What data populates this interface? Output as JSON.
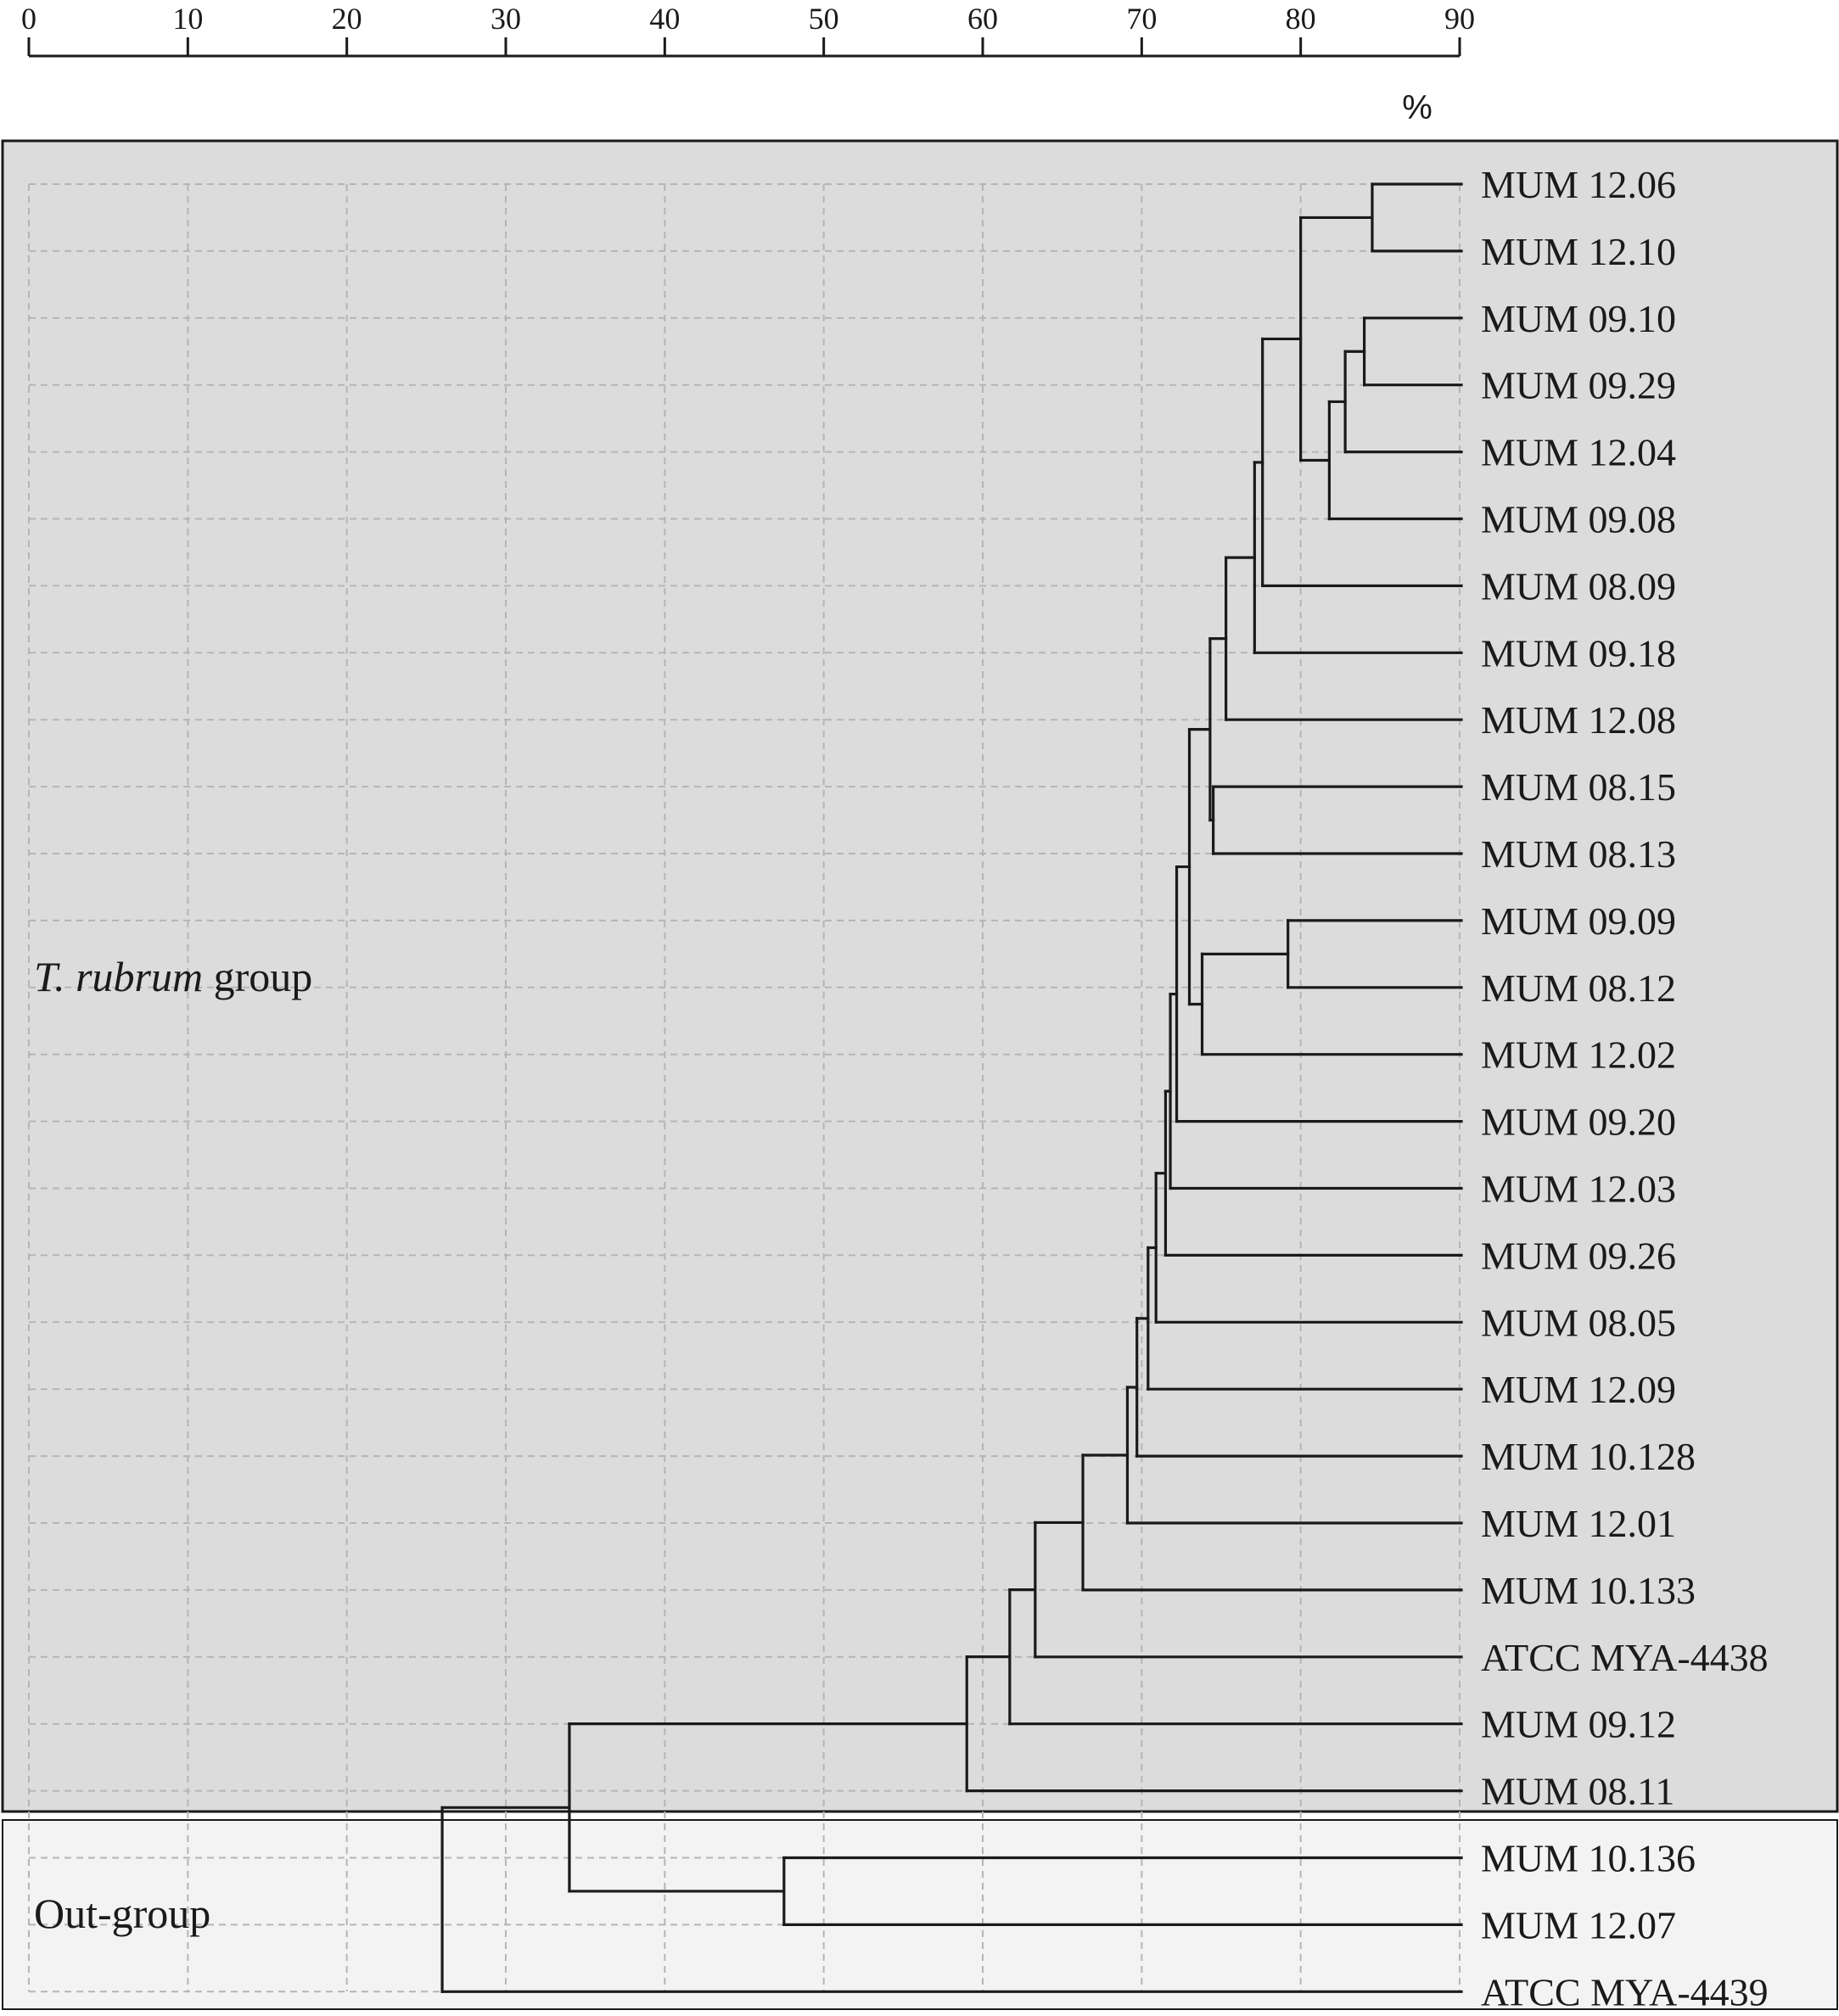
{
  "scale": {
    "unit": "%",
    "ticks": [
      "0",
      "10",
      "20",
      "30",
      "40",
      "50",
      "60",
      "70",
      "80",
      "90"
    ],
    "range": [
      0,
      90
    ]
  },
  "groups": {
    "ingroup": {
      "label_italic": "T. rubrum",
      "label_rest": " group",
      "fill": "#dcdcdc"
    },
    "outgroup": {
      "label": "Out-group",
      "fill": "#f3f3f3"
    }
  },
  "leaves": [
    "MUM 12.06",
    "MUM 12.10",
    "MUM 09.10",
    "MUM 09.29",
    "MUM 12.04",
    "MUM 09.08",
    "MUM 08.09",
    "MUM 09.18",
    "MUM 12.08",
    "MUM 08.15",
    "MUM 08.13",
    "MUM 09.09",
    "MUM 08.12",
    "MUM 12.02",
    "MUM 09.20",
    "MUM 12.03",
    "MUM 09.26",
    "MUM 08.05",
    "MUM 12.09",
    "MUM 10.128",
    "MUM 12.01",
    "MUM 10.133",
    "ATCC MYA-4438",
    "MUM 09.12",
    "MUM 08.11",
    "MUM 10.136",
    "MUM 12.07",
    "ATCC MYA-4439"
  ],
  "ingroup_leaf_count": 25,
  "tree": {
    "sim": 26.0,
    "children": [
      {
        "sim": 34.0,
        "children": [
          {
            "sim": 59.0,
            "children": [
              {
                "sim": 61.7,
                "children": [
                  {
                    "sim": 63.3,
                    "children": [
                      {
                        "sim": 66.3,
                        "children": [
                          {
                            "sim": 69.1,
                            "children": [
                              {
                                "sim": 69.7,
                                "children": [
                                  {
                                    "sim": 70.4,
                                    "children": [
                                      {
                                        "sim": 70.9,
                                        "children": [
                                          {
                                            "sim": 71.5,
                                            "children": [
                                              {
                                                "sim": 71.8,
                                                "children": [
                                                  {
                                                    "sim": 72.2,
                                                    "children": [
                                                      {
                                                        "sim": 73.0,
                                                        "children": [
                                                          {
                                                            "sim": 74.3,
                                                            "children": [
                                                              {
                                                                "sim": 75.3,
                                                                "children": [
                                                                  {
                                                                    "sim": 77.1,
                                                                    "children": [
                                                                      {
                                                                        "sim": 77.6,
                                                                        "children": [
                                                                          {
                                                                            "sim": 80.0,
                                                                            "children": [
                                                                              {
                                                                                "sim": 84.5,
                                                                                "children": [
                                                                                  {
                                                                                    "leaf": 0
                                                                                  },
                                                                                  {
                                                                                    "leaf": 1
                                                                                  }
                                                                                ]
                                                                              },
                                                                              {
                                                                                "sim": 81.8,
                                                                                "children": [
                                                                                  {
                                                                                    "sim": 82.8,
                                                                                    "children": [
                                                                                      {
                                                                                        "sim": 84.0,
                                                                                        "children": [
                                                                                          {
                                                                                            "leaf": 2
                                                                                          },
                                                                                          {
                                                                                            "leaf": 3
                                                                                          }
                                                                                        ]
                                                                                      },
                                                                                      {
                                                                                        "leaf": 4
                                                                                      }
                                                                                    ]
                                                                                  },
                                                                                  {
                                                                                    "leaf": 5
                                                                                  }
                                                                                ]
                                                                              }
                                                                            ]
                                                                          },
                                                                          {
                                                                            "leaf": 6
                                                                          }
                                                                        ]
                                                                      },
                                                                      {
                                                                        "leaf": 7
                                                                      }
                                                                    ]
                                                                  },
                                                                  {
                                                                    "leaf": 8
                                                                  }
                                                                ]
                                                              },
                                                              {
                                                                "sim": 74.5,
                                                                "children": [
                                                                  {
                                                                    "leaf": 9
                                                                  },
                                                                  {
                                                                    "leaf": 10
                                                                  }
                                                                ]
                                                              }
                                                            ]
                                                          },
                                                          {
                                                            "sim": 73.8,
                                                            "children": [
                                                              {
                                                                "sim": 79.2,
                                                                "children": [
                                                                  {
                                                                    "leaf": 11
                                                                  },
                                                                  {
                                                                    "leaf": 12
                                                                  }
                                                                ]
                                                              },
                                                              {
                                                                "leaf": 13
                                                              }
                                                            ]
                                                          }
                                                        ]
                                                      },
                                                      {
                                                        "leaf": 14
                                                      }
                                                    ]
                                                  },
                                                  {
                                                    "leaf": 15
                                                  }
                                                ]
                                              },
                                              {
                                                "leaf": 16
                                              }
                                            ]
                                          },
                                          {
                                            "leaf": 17
                                          }
                                        ]
                                      },
                                      {
                                        "leaf": 18
                                      }
                                    ]
                                  },
                                  {
                                    "leaf": 19
                                  }
                                ]
                              },
                              {
                                "leaf": 20
                              }
                            ]
                          },
                          {
                            "leaf": 21
                          }
                        ]
                      },
                      {
                        "leaf": 22
                      }
                    ]
                  },
                  {
                    "leaf": 23
                  }
                ]
              },
              {
                "leaf": 24
              }
            ]
          },
          {
            "sim": 47.5,
            "children": [
              {
                "leaf": 25
              },
              {
                "leaf": 26
              }
            ]
          }
        ]
      },
      {
        "leaf": 27
      }
    ]
  }
}
